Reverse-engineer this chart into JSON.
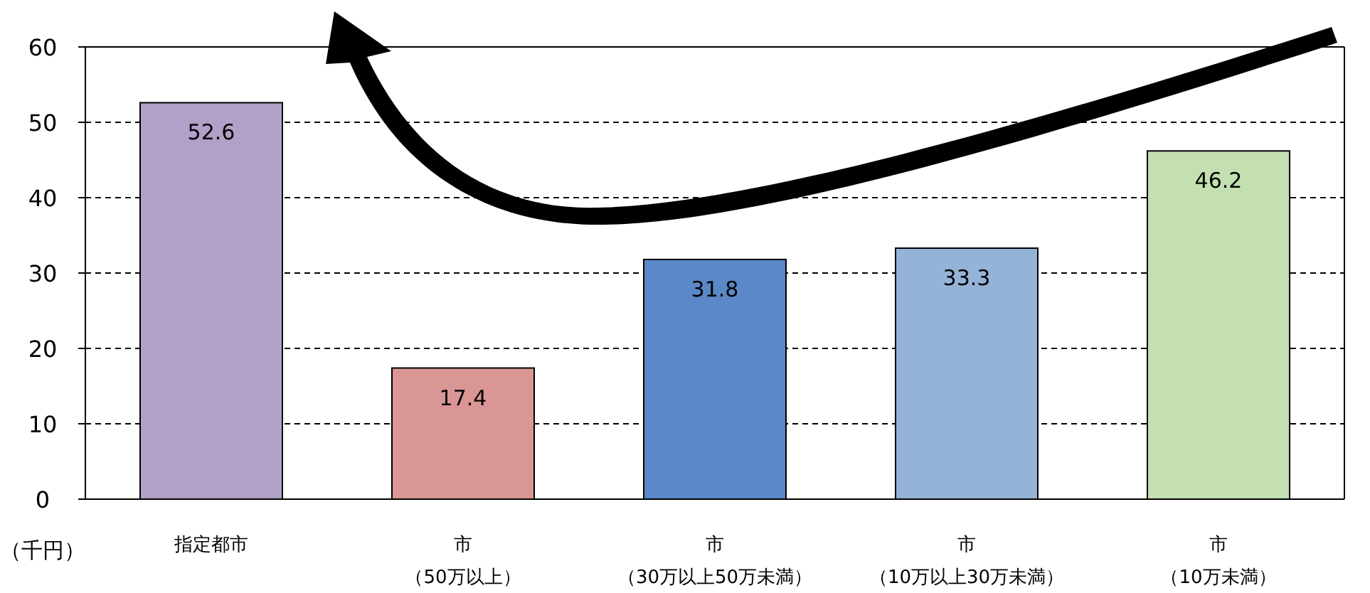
{
  "chart_data": {
    "type": "bar",
    "ylabel": "（千円）",
    "categories": [
      "指定都市",
      "市（50万以上）",
      "市（30万以上50万未満）",
      "市（10万以上30万未満）",
      "市（10万未満）"
    ],
    "values": [
      52.6,
      17.4,
      31.8,
      33.3,
      46.2
    ],
    "colors": [
      "#b1a0c7",
      "#d99694",
      "#5a88c8",
      "#95b3d7",
      "#c4e0b2"
    ],
    "ylim": [
      0,
      60
    ],
    "yticks": [
      0,
      10,
      20,
      30,
      40,
      50,
      60
    ],
    "grid": "y",
    "data_labels": true
  }
}
